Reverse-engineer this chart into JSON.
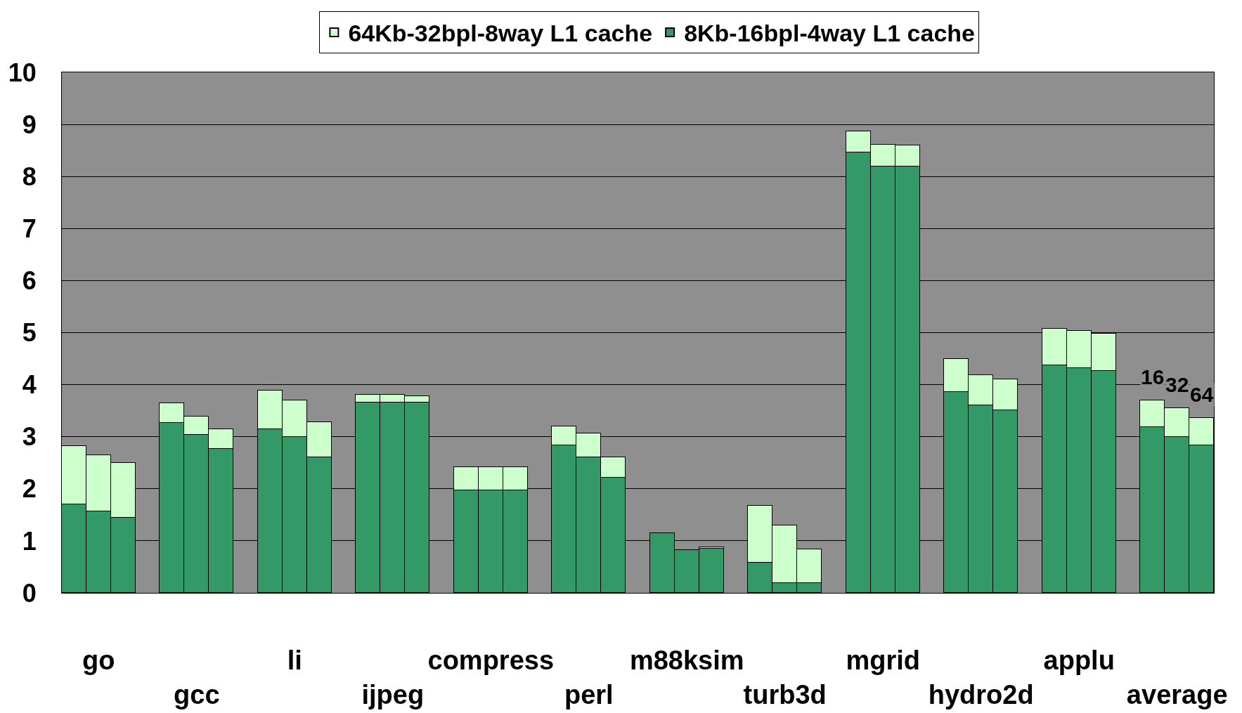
{
  "chart_data": {
    "type": "bar",
    "stacked": true,
    "categories": [
      null,
      "go",
      null,
      null,
      null,
      "gcc",
      null,
      null,
      null,
      "li",
      null,
      null,
      null,
      "ijpeg",
      null,
      null,
      null,
      "compress",
      null,
      null,
      null,
      "perl",
      null,
      null,
      null,
      "m88ksim",
      null,
      null,
      null,
      "turb3d",
      null,
      null,
      null,
      "mgrid",
      null,
      null,
      null,
      "hydro2d",
      null,
      null,
      null,
      "applu",
      null,
      null,
      null,
      "average",
      null
    ],
    "series": [
      {
        "name": "8Kb-16bpl-4way L1 cache",
        "color": "#339966",
        "values": [
          1.7,
          1.56,
          1.45,
          null,
          3.26,
          3.04,
          2.77,
          null,
          3.15,
          2.99,
          2.6,
          null,
          3.66,
          3.66,
          3.66,
          null,
          1.97,
          1.97,
          1.97,
          null,
          2.84,
          2.6,
          2.22,
          null,
          1.15,
          0.82,
          0.85,
          null,
          0.58,
          0.19,
          0.19,
          null,
          8.46,
          8.19,
          8.19,
          null,
          3.86,
          3.61,
          3.51,
          null,
          4.37,
          4.32,
          4.27,
          null,
          3.18,
          2.99,
          2.84
        ]
      },
      {
        "name": "64Kb-32bpl-8way L1 cache",
        "color": "#ccffcc",
        "values": [
          1.12,
          1.09,
          1.04,
          null,
          0.38,
          0.35,
          0.38,
          null,
          0.74,
          0.71,
          0.68,
          null,
          0.14,
          0.14,
          0.12,
          null,
          0.44,
          0.44,
          0.44,
          null,
          0.36,
          0.46,
          0.38,
          null,
          null,
          null,
          0.03,
          null,
          1.09,
          1.1,
          0.65,
          null,
          0.41,
          0.42,
          0.4,
          null,
          0.63,
          0.57,
          0.59,
          null,
          0.71,
          0.72,
          0.71,
          null,
          0.52,
          0.56,
          0.52
        ]
      }
    ],
    "annotations": [
      {
        "text": "16",
        "y": 3.7
      },
      {
        "text": "32",
        "x": "average",
        "y": 3.55
      },
      {
        "text": "64",
        "y": 3.36
      }
    ],
    "ylim": [
      0,
      10
    ],
    "yticks": [
      0,
      1,
      2,
      3,
      4,
      5,
      6,
      7,
      8,
      9,
      10
    ],
    "grid": "y",
    "legend": "top"
  }
}
